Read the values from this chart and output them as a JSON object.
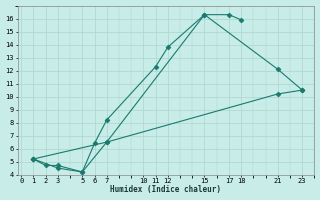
{
  "line1_x": [
    1,
    2,
    3,
    5,
    6,
    7,
    11,
    12,
    15,
    17,
    18
  ],
  "line1_y": [
    5.2,
    4.7,
    4.7,
    4.2,
    6.4,
    8.2,
    12.3,
    13.8,
    16.3,
    16.3,
    15.9
  ],
  "line2_x": [
    1,
    3,
    5,
    7,
    15,
    21,
    23
  ],
  "line2_y": [
    5.2,
    4.5,
    4.2,
    6.5,
    16.3,
    12.1,
    10.5
  ],
  "line3_x": [
    1,
    7,
    21,
    23
  ],
  "line3_y": [
    5.2,
    6.5,
    10.2,
    10.5
  ],
  "color": "#1a7a6e",
  "bg_color": "#c8ece8",
  "grid_color": "#aed4cf",
  "xlabel": "Humidex (Indice chaleur)",
  "xlim": [
    -0.3,
    24
  ],
  "ylim": [
    4,
    17
  ],
  "xticks": [
    0,
    1,
    2,
    3,
    5,
    6,
    7,
    10,
    11,
    12,
    15,
    17,
    18,
    21,
    23
  ],
  "yticks": [
    4,
    5,
    6,
    7,
    8,
    9,
    10,
    11,
    12,
    13,
    14,
    15,
    16
  ],
  "marker": "D",
  "markersize": 2.5,
  "linewidth": 0.8,
  "tick_fontsize": 5.0,
  "xlabel_fontsize": 5.5
}
